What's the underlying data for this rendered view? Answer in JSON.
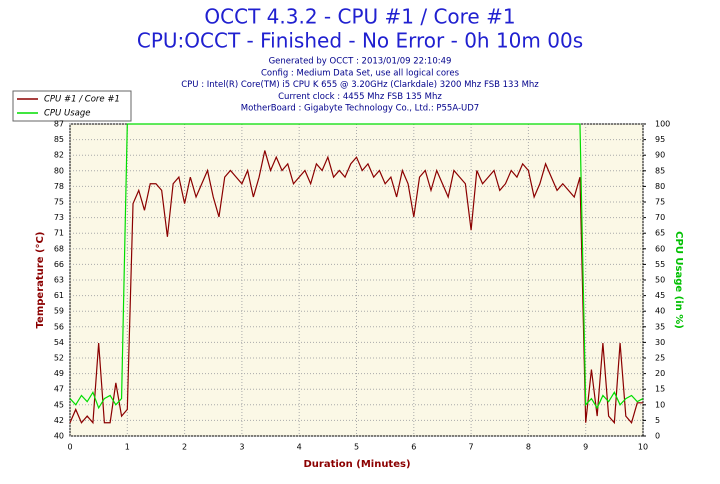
{
  "chart_data": {
    "type": "line",
    "title": "OCCT 4.3.2 - CPU #1 / Core #1",
    "subtitle": "CPU:OCCT - Finished - No Error - 0h 10m 00s",
    "info": [
      "Generated by OCCT : 2013/01/09 22:10:49",
      "Config : Medium Data Set, use all logical cores",
      "CPU : Intel(R) Core(TM) i5 CPU K 655 @ 3.20GHz (Clarkdale) 3200 Mhz FSB 133 Mhz",
      "Current clock : 4455 Mhz FSB 135 Mhz",
      "MotherBoard : Gigabyte Technology Co., Ltd.: P55A-UD7"
    ],
    "xlabel": "Duration (Minutes)",
    "ylabel": "Temperature (°C)",
    "y2label": "CPU Usage (in %)",
    "xlim": [
      0,
      10
    ],
    "xticks": [
      0,
      1,
      2,
      3,
      4,
      5,
      6,
      7,
      8,
      9,
      10
    ],
    "ylim": [
      40,
      87
    ],
    "yticks": [
      {
        "value": 40,
        "label": "40"
      },
      {
        "value": 42.35,
        "label": "42"
      },
      {
        "value": 44.7,
        "label": "45"
      },
      {
        "value": 47.05,
        "label": "47"
      },
      {
        "value": 49.4,
        "label": "49"
      },
      {
        "value": 51.75,
        "label": "52"
      },
      {
        "value": 54.1,
        "label": "54"
      },
      {
        "value": 56.45,
        "label": "56"
      },
      {
        "value": 58.8,
        "label": "59"
      },
      {
        "value": 61.15,
        "label": "61"
      },
      {
        "value": 63.5,
        "label": "63"
      },
      {
        "value": 65.85,
        "label": "66"
      },
      {
        "value": 68.2,
        "label": "68"
      },
      {
        "value": 70.55,
        "label": "71"
      },
      {
        "value": 72.9,
        "label": "73"
      },
      {
        "value": 75.25,
        "label": "75"
      },
      {
        "value": 77.6,
        "label": "78"
      },
      {
        "value": 79.95,
        "label": "80"
      },
      {
        "value": 82.3,
        "label": "82"
      },
      {
        "value": 84.65,
        "label": "85"
      },
      {
        "value": 87,
        "label": "87"
      }
    ],
    "y2lim": [
      0,
      100
    ],
    "y2ticks": [
      0,
      5,
      10,
      15,
      20,
      25,
      30,
      35,
      40,
      45,
      50,
      55,
      60,
      65,
      70,
      75,
      80,
      85,
      90,
      95,
      100
    ],
    "grid": true,
    "x": [
      0,
      0.1,
      0.2,
      0.3,
      0.4,
      0.5,
      0.6,
      0.7,
      0.8,
      0.9,
      1,
      1.1,
      1.2,
      1.3,
      1.4,
      1.5,
      1.6,
      1.7,
      1.8,
      1.9,
      2,
      2.1,
      2.2,
      2.3,
      2.4,
      2.5,
      2.6,
      2.7,
      2.8,
      2.9,
      3,
      3.1,
      3.2,
      3.3,
      3.4,
      3.5,
      3.6,
      3.7,
      3.8,
      3.9,
      4,
      4.1,
      4.2,
      4.3,
      4.4,
      4.5,
      4.6,
      4.7,
      4.8,
      4.9,
      5,
      5.1,
      5.2,
      5.3,
      5.4,
      5.5,
      5.6,
      5.7,
      5.8,
      5.9,
      6,
      6.1,
      6.2,
      6.3,
      6.4,
      6.5,
      6.6,
      6.7,
      6.8,
      6.9,
      7,
      7.1,
      7.2,
      7.3,
      7.4,
      7.5,
      7.6,
      7.7,
      7.8,
      7.9,
      8,
      8.1,
      8.2,
      8.3,
      8.4,
      8.5,
      8.6,
      8.7,
      8.8,
      8.9,
      9,
      9.1,
      9.2,
      9.3,
      9.4,
      9.5,
      9.6,
      9.7,
      9.8,
      9.9,
      10
    ],
    "series": [
      {
        "name": "CPU #1 / Core #1",
        "color": "#8b0000",
        "values": [
          42,
          44,
          42,
          43,
          42,
          54,
          42,
          42,
          48,
          43,
          44,
          75,
          77,
          74,
          78,
          78,
          77,
          70,
          78,
          79,
          75,
          79,
          76,
          78,
          80,
          76,
          73,
          79,
          80,
          79,
          78,
          80,
          76,
          79,
          83,
          80,
          82,
          80,
          81,
          78,
          79,
          80,
          78,
          81,
          80,
          82,
          79,
          80,
          79,
          81,
          82,
          80,
          81,
          79,
          80,
          78,
          79,
          76,
          80,
          78,
          73,
          79,
          80,
          77,
          80,
          78,
          76,
          80,
          79,
          78,
          71,
          80,
          78,
          79,
          80,
          77,
          78,
          80,
          79,
          81,
          80,
          76,
          78,
          81,
          79,
          77,
          78,
          77,
          76,
          79,
          42,
          50,
          43,
          54,
          43,
          42,
          54,
          43,
          42,
          45,
          45
        ]
      },
      {
        "name": "CPU Usage",
        "color": "#00dd00",
        "axis": "y2",
        "values": [
          12,
          10,
          13,
          11,
          14,
          9,
          12,
          13,
          10,
          12,
          100,
          100,
          100,
          100,
          100,
          100,
          100,
          100,
          100,
          100,
          100,
          100,
          100,
          100,
          100,
          100,
          100,
          100,
          100,
          100,
          100,
          100,
          100,
          100,
          100,
          100,
          100,
          100,
          100,
          100,
          100,
          100,
          100,
          100,
          100,
          100,
          100,
          100,
          100,
          100,
          100,
          100,
          100,
          100,
          100,
          100,
          100,
          100,
          100,
          100,
          100,
          100,
          100,
          100,
          100,
          100,
          100,
          100,
          100,
          100,
          100,
          100,
          100,
          100,
          100,
          100,
          100,
          100,
          100,
          100,
          100,
          100,
          100,
          100,
          100,
          100,
          100,
          100,
          100,
          100,
          10,
          12,
          9,
          13,
          11,
          14,
          10,
          12,
          13,
          11,
          12
        ]
      }
    ]
  }
}
